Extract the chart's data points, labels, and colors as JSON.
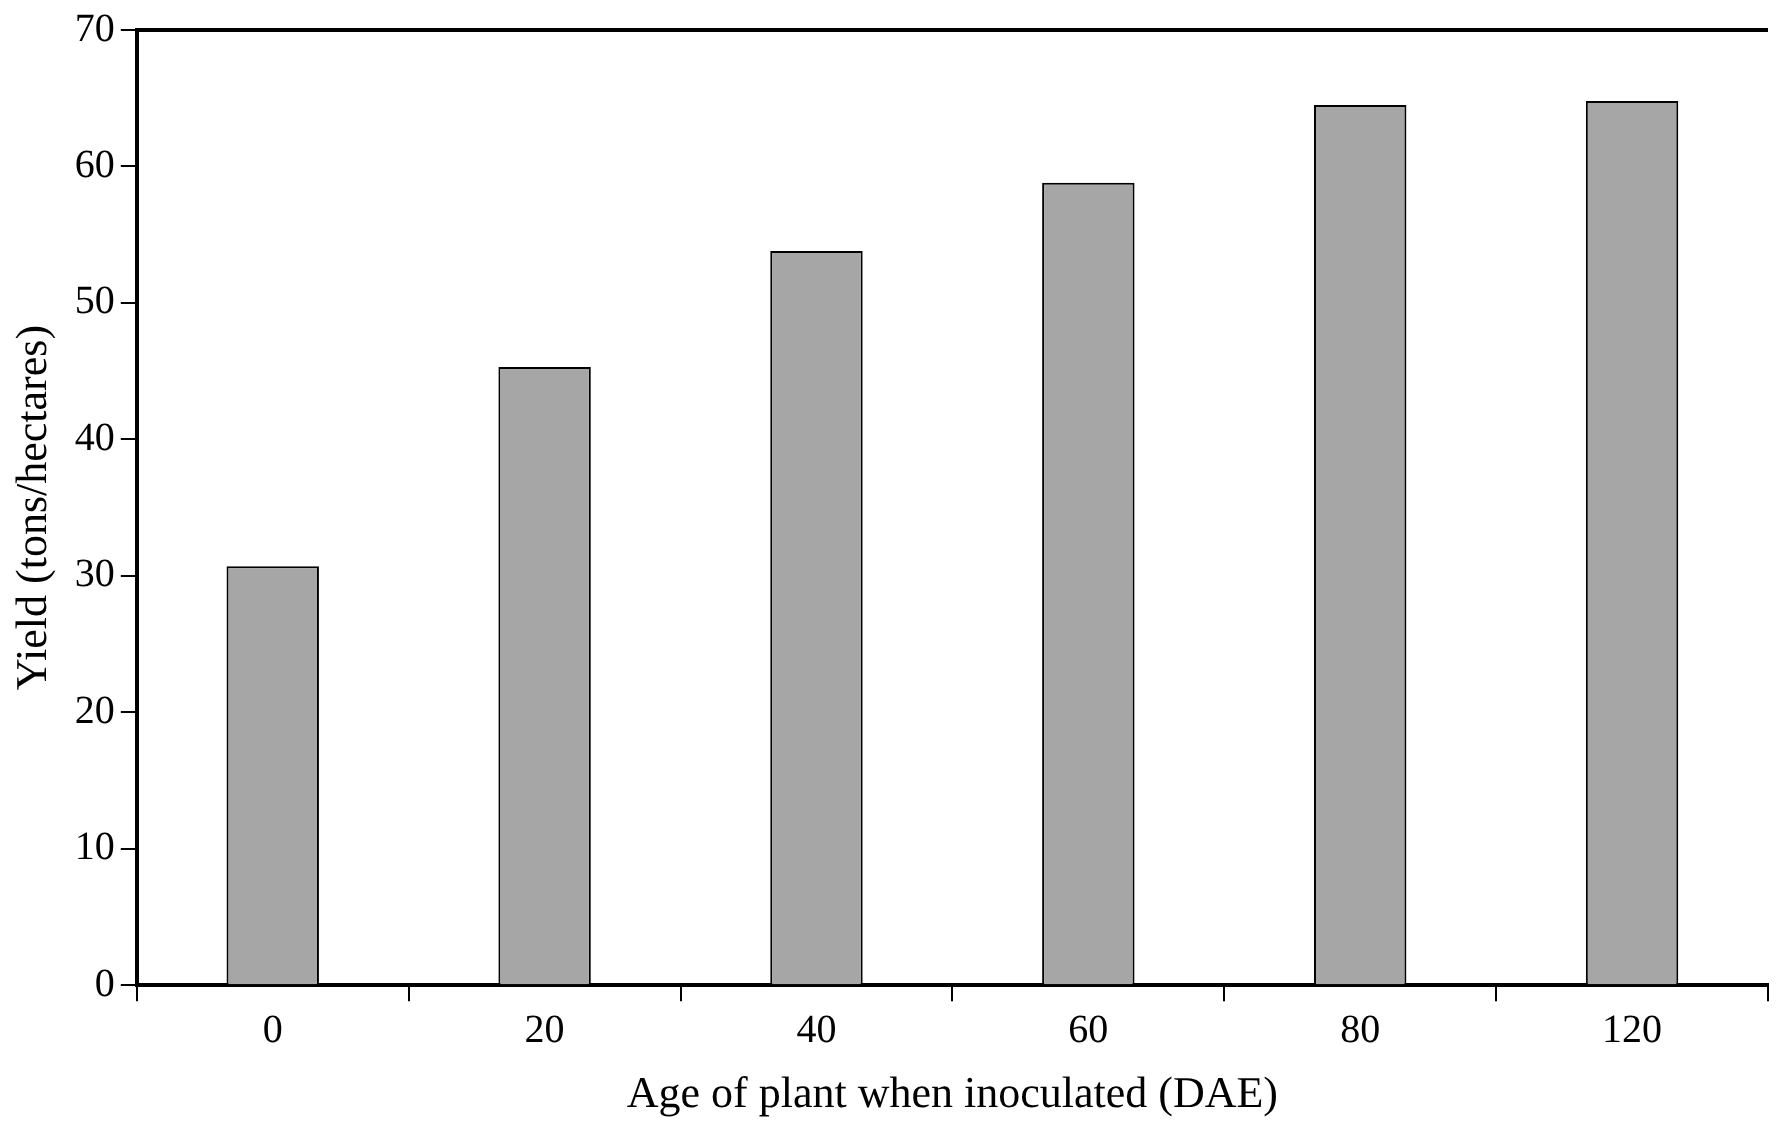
{
  "chart_data": {
    "type": "bar",
    "xlabel": "Age of plant when inoculated (DAE)",
    "ylabel": "Yield (tons/hectares)",
    "categories": [
      "0",
      "20",
      "40",
      "60",
      "80",
      "120"
    ],
    "values": [
      30.7,
      45.3,
      53.8,
      58.8,
      64.5,
      64.8
    ],
    "color": "#a6a6a6",
    "ylim": [
      0,
      70
    ],
    "yticks": [
      0,
      10,
      20,
      30,
      40,
      50,
      60,
      70
    ]
  }
}
